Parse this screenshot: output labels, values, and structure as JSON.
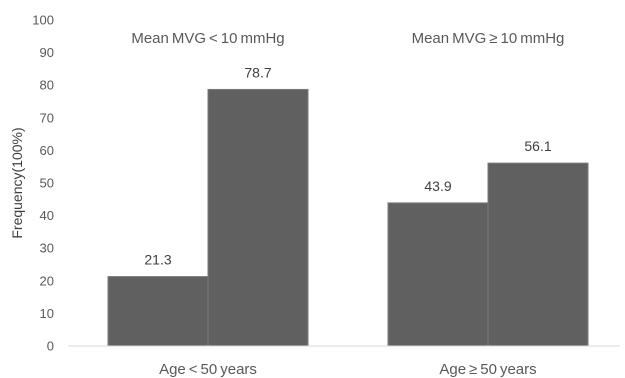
{
  "chart_data": {
    "type": "bar",
    "ylabel": "Frequency​(100%)",
    "ylim": [
      0,
      100
    ],
    "yticks": [
      0,
      10,
      20,
      30,
      40,
      50,
      60,
      70,
      80,
      90,
      100
    ],
    "grid": false,
    "bar_color": "#606060",
    "bar_edge_color": "#7a7a7a",
    "groups": [
      {
        "category": "Age < 50 years",
        "bars": [
          {
            "series": "Mean MVG < 10 mmHg",
            "value": 21.3,
            "label": "21.3"
          },
          {
            "series": "Mean MVG ≥ 10 mmHg",
            "value": 78.7,
            "label": "78.7"
          }
        ]
      },
      {
        "category": "Age ≥ 50 years",
        "bars": [
          {
            "series": "Mean MVG < 10 mmHg",
            "value": 43.9,
            "label": "43.9"
          },
          {
            "series": "Mean MVG ≥ 10 mmHg",
            "value": 56.1,
            "label": "56.1"
          }
        ]
      }
    ],
    "group_titles": [
      "Mean MVG < 10 mmHg",
      "Mean MVG ≥ 10 mmHg"
    ]
  }
}
